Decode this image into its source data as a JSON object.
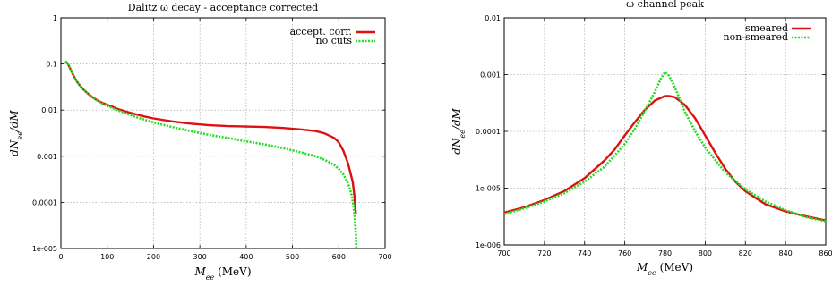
{
  "chart_data": [
    {
      "type": "line",
      "title": "Dalitz ω decay - acceptance corrected",
      "xlabel": "M_ee (MeV)",
      "ylabel": "dN_ee/dM",
      "xscale": "linear",
      "yscale": "log",
      "xlim": [
        0,
        700
      ],
      "ylim": [
        1e-05,
        1
      ],
      "xticks": [
        0,
        100,
        200,
        300,
        400,
        500,
        600,
        700
      ],
      "yticks": [
        1e-05,
        0.0001,
        0.001,
        0.01,
        0.1,
        1
      ],
      "xtick_labels": [
        "0",
        "100",
        "200",
        "300",
        "400",
        "500",
        "600",
        "700"
      ],
      "ytick_labels": [
        "1e-005",
        "0.0001",
        "0.001",
        "0.01",
        "0.1",
        "1"
      ],
      "grid": true,
      "legend_position": "top-right",
      "series": [
        {
          "name": "accept. corr.",
          "color": "#dd1111",
          "style": "solid",
          "x": [
            10,
            15,
            20,
            25,
            30,
            35,
            40,
            50,
            60,
            70,
            80,
            90,
            100,
            110,
            120,
            140,
            160,
            180,
            200,
            240,
            280,
            320,
            360,
            400,
            440,
            480,
            520,
            550,
            570,
            590,
            600,
            610,
            620,
            630,
            634,
            636,
            637
          ],
          "y": [
            0.115,
            0.1,
            0.08,
            0.062,
            0.05,
            0.041,
            0.035,
            0.027,
            0.022,
            0.0185,
            0.016,
            0.0143,
            0.013,
            0.012,
            0.0108,
            0.0093,
            0.0082,
            0.0073,
            0.0066,
            0.0057,
            0.0051,
            0.0047,
            0.0045,
            0.0044,
            0.0043,
            0.0041,
            0.0038,
            0.0035,
            0.0031,
            0.0025,
            0.002,
            0.0013,
            0.0007,
            0.00028,
            0.00013,
            7e-05,
            5.5e-05
          ]
        },
        {
          "name": "no cuts",
          "color": "#22dd22",
          "style": "dotted",
          "x": [
            10,
            15,
            20,
            25,
            30,
            35,
            40,
            50,
            60,
            70,
            80,
            90,
            100,
            110,
            120,
            140,
            160,
            180,
            200,
            240,
            280,
            320,
            360,
            400,
            440,
            480,
            520,
            550,
            570,
            590,
            600,
            610,
            620,
            628,
            632,
            635,
            637,
            638
          ],
          "y": [
            0.115,
            0.1,
            0.08,
            0.062,
            0.05,
            0.041,
            0.035,
            0.027,
            0.022,
            0.0183,
            0.0157,
            0.0138,
            0.0124,
            0.0112,
            0.0101,
            0.0085,
            0.0072,
            0.0062,
            0.0054,
            0.0043,
            0.0035,
            0.0029,
            0.0025,
            0.0021,
            0.0018,
            0.0015,
            0.0012,
            0.001,
            0.00083,
            0.00065,
            0.00053,
            0.0004,
            0.00026,
            0.00014,
            8e-05,
            4e-05,
            2e-05,
            1e-05
          ]
        }
      ]
    },
    {
      "type": "line",
      "title": "ω channel peak",
      "xlabel": "M_ee (MeV)",
      "ylabel": "dN_ee/dM",
      "xscale": "linear",
      "yscale": "log",
      "xlim": [
        700,
        860
      ],
      "ylim": [
        1e-06,
        0.01
      ],
      "xticks": [
        700,
        720,
        740,
        760,
        780,
        800,
        820,
        840,
        860
      ],
      "yticks": [
        1e-06,
        1e-05,
        0.0001,
        0.001,
        0.01
      ],
      "xtick_labels": [
        "700",
        "720",
        "740",
        "760",
        "780",
        "800",
        "820",
        "840",
        "860"
      ],
      "ytick_labels": [
        "1e-006",
        "1e-005",
        "0.0001",
        "0.001",
        "0.01"
      ],
      "grid": true,
      "legend_position": "top-right",
      "series": [
        {
          "name": "smeared",
          "color": "#dd1111",
          "style": "solid",
          "x": [
            700,
            710,
            720,
            730,
            740,
            750,
            755,
            760,
            765,
            770,
            775,
            780,
            782,
            785,
            790,
            795,
            800,
            805,
            810,
            815,
            820,
            830,
            840,
            850,
            860
          ],
          "y": [
            3.7e-06,
            4.6e-06,
            6.2e-06,
            8.9e-06,
            1.5e-05,
            3.1e-05,
            4.8e-05,
            8.5e-05,
            0.000145,
            0.00024,
            0.00035,
            0.00042,
            0.00042,
            0.0004,
            0.00029,
            0.00017,
            8.5e-05,
            4.2e-05,
            2.2e-05,
            1.3e-05,
            8.8e-06,
            5.2e-06,
            3.9e-06,
            3.2e-06,
            2.7e-06
          ]
        },
        {
          "name": "non-smeared",
          "color": "#22dd22",
          "style": "dotted",
          "x": [
            700,
            710,
            720,
            730,
            740,
            750,
            760,
            765,
            770,
            775,
            778,
            780,
            782,
            784,
            786,
            790,
            795,
            800,
            810,
            820,
            830,
            840,
            850,
            860
          ],
          "y": [
            3.5e-06,
            4.4e-06,
            5.8e-06,
            8.2e-06,
            1.3e-05,
            2.4e-05,
            6e-05,
            0.00011,
            0.00023,
            0.0005,
            0.00085,
            0.0011,
            0.00095,
            0.0007,
            0.00048,
            0.00022,
            0.0001,
            5.2e-05,
            1.9e-05,
            9.5e-06,
            5.8e-06,
            4.1e-06,
            3.1e-06,
            2.6e-06
          ]
        }
      ]
    }
  ]
}
